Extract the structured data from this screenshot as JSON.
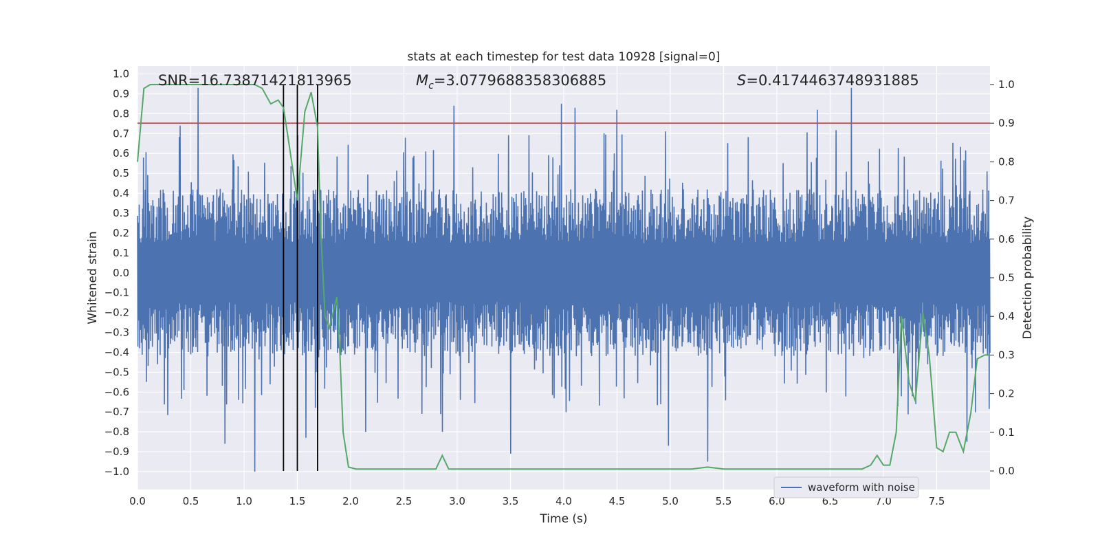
{
  "chart_data": {
    "type": "line",
    "title": "stats at each timestep for test data 10928 [signal=0]",
    "xlabel": "Time (s)",
    "ylabel_left": "Whitened strain",
    "ylabel_right": "Detection probability",
    "xlim": [
      0.0,
      8.0
    ],
    "ylim_left": [
      -1.09,
      1.04
    ],
    "ylim_right": [
      -0.048,
      1.048
    ],
    "x_ticks": [
      "0.0",
      "0.5",
      "1.0",
      "1.5",
      "2.0",
      "2.5",
      "3.0",
      "3.5",
      "4.0",
      "4.5",
      "5.0",
      "5.5",
      "6.0",
      "6.5",
      "7.0",
      "7.5"
    ],
    "y_ticks_left": [
      "-1.0",
      "-0.9",
      "-0.8",
      "-0.7",
      "-0.6",
      "-0.5",
      "-0.4",
      "-0.3",
      "-0.2",
      "-0.1",
      "0.0",
      "0.1",
      "0.2",
      "0.3",
      "0.4",
      "0.5",
      "0.6",
      "0.7",
      "0.8",
      "0.9",
      "1.0"
    ],
    "y_ticks_right": [
      "0.0",
      "0.1",
      "0.2",
      "0.3",
      "0.4",
      "0.5",
      "0.6",
      "0.7",
      "0.8",
      "0.9",
      "1.0"
    ],
    "grid": true,
    "legend": {
      "entry": "waveform with noise",
      "placement": "bottom-right"
    },
    "annotations": {
      "snr": "SNR=16.73871421813965",
      "mc_symbol": "M",
      "mc_sub": "c",
      "mc_value": "=3.0779688358306885",
      "s_symbol": "S",
      "s_value": "=0.4174463748931885"
    },
    "colors": {
      "strain": "#4c72b0",
      "probability": "#55a868",
      "threshold": "#c44e52",
      "marker": "#000000",
      "background": "#eaeaf2",
      "grid": "#ffffff"
    },
    "threshold_probability": 0.9,
    "vertical_markers_x": [
      1.37,
      1.5,
      1.69
    ],
    "strain_envelope": {
      "sample_count": 2000,
      "typical_peak": 0.42,
      "spikes": [
        {
          "x": 0.57,
          "y": 0.93
        },
        {
          "x": 0.4,
          "y": 0.74
        },
        {
          "x": 1.1,
          "y": -1.0
        },
        {
          "x": 0.82,
          "y": -0.86
        },
        {
          "x": 1.58,
          "y": -0.83
        },
        {
          "x": 2.14,
          "y": -0.8
        },
        {
          "x": 2.97,
          "y": 0.84
        },
        {
          "x": 3.5,
          "y": -0.91
        },
        {
          "x": 3.98,
          "y": 0.85
        },
        {
          "x": 4.11,
          "y": 0.83
        },
        {
          "x": 4.5,
          "y": 0.82
        },
        {
          "x": 5.35,
          "y": -0.95
        },
        {
          "x": 6.7,
          "y": 0.93
        },
        {
          "x": 6.38,
          "y": 0.82
        },
        {
          "x": 7.78,
          "y": -0.85
        },
        {
          "x": 4.98,
          "y": -0.87
        },
        {
          "x": 2.86,
          "y": -0.8
        }
      ]
    },
    "probability_series": {
      "x": [
        0.0,
        0.06,
        0.12,
        0.2,
        0.3,
        0.4,
        0.5,
        0.6,
        0.7,
        0.8,
        0.9,
        1.0,
        1.1,
        1.17,
        1.25,
        1.32,
        1.37,
        1.42,
        1.5,
        1.57,
        1.63,
        1.69,
        1.72,
        1.76,
        1.8,
        1.87,
        1.9,
        1.93,
        1.98,
        2.05,
        2.2,
        2.4,
        2.6,
        2.8,
        2.86,
        2.92,
        3.0,
        3.2,
        3.4,
        3.6,
        4.0,
        4.4,
        4.8,
        5.0,
        5.2,
        5.35,
        5.5,
        5.8,
        6.0,
        6.4,
        6.8,
        6.88,
        6.94,
        7.0,
        7.06,
        7.12,
        7.17,
        7.24,
        7.3,
        7.37,
        7.43,
        7.5,
        7.56,
        7.62,
        7.68,
        7.75,
        7.82,
        7.88,
        7.95,
        8.0
      ],
      "y": [
        0.8,
        0.99,
        1.0,
        1.0,
        1.0,
        1.0,
        1.0,
        1.0,
        1.0,
        1.0,
        1.0,
        1.0,
        1.0,
        0.99,
        0.95,
        0.96,
        0.94,
        0.85,
        0.7,
        0.93,
        0.98,
        0.89,
        0.62,
        0.4,
        0.37,
        0.45,
        0.3,
        0.1,
        0.01,
        0.005,
        0.005,
        0.005,
        0.005,
        0.005,
        0.04,
        0.005,
        0.005,
        0.005,
        0.005,
        0.005,
        0.005,
        0.005,
        0.005,
        0.005,
        0.005,
        0.01,
        0.005,
        0.005,
        0.005,
        0.005,
        0.005,
        0.015,
        0.04,
        0.015,
        0.015,
        0.1,
        0.4,
        0.23,
        0.18,
        0.41,
        0.3,
        0.06,
        0.05,
        0.1,
        0.1,
        0.05,
        0.15,
        0.29,
        0.3,
        0.3
      ]
    }
  }
}
